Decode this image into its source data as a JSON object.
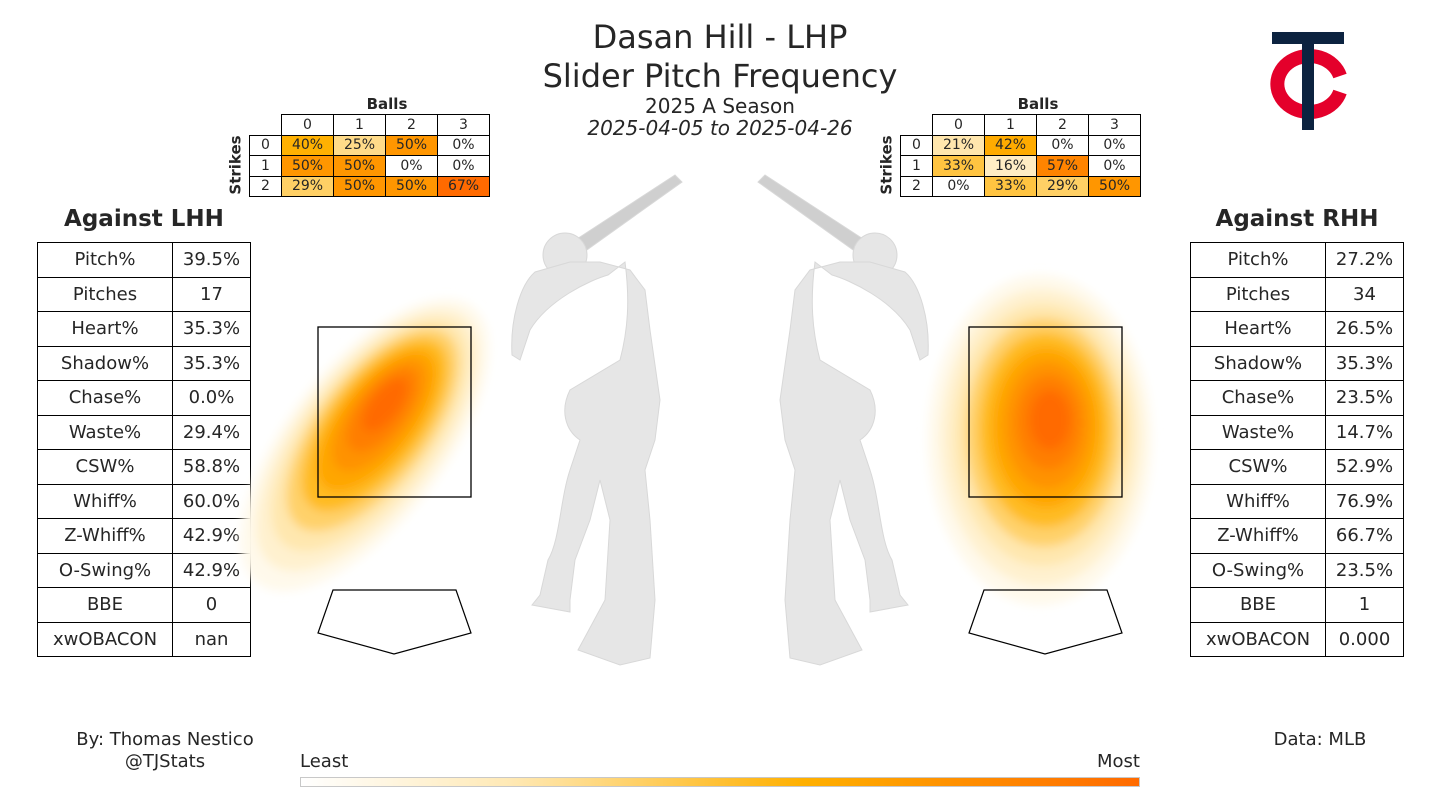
{
  "header": {
    "title_line1": "Dasan Hill - LHP",
    "title_line2": "Slider Pitch Frequency",
    "season": "2025 A Season",
    "dates": "2025-04-05 to 2025-04-26"
  },
  "colors": {
    "low": "#fffbf0",
    "mid": "#ffb000",
    "high": "#ff6a00",
    "logo_navy": "#0c2340",
    "logo_red": "#e4002b"
  },
  "lhh": {
    "heading": "Against LHH",
    "stats": [
      {
        "label": "Pitch%",
        "value": "39.5%"
      },
      {
        "label": "Pitches",
        "value": "17"
      },
      {
        "label": "Heart%",
        "value": "35.3%"
      },
      {
        "label": "Shadow%",
        "value": "35.3%"
      },
      {
        "label": "Chase%",
        "value": "0.0%"
      },
      {
        "label": "Waste%",
        "value": "29.4%"
      },
      {
        "label": "CSW%",
        "value": "58.8%"
      },
      {
        "label": "Whiff%",
        "value": "60.0%"
      },
      {
        "label": "Z-Whiff%",
        "value": "42.9%"
      },
      {
        "label": "O-Swing%",
        "value": "42.9%"
      },
      {
        "label": "BBE",
        "value": "0"
      },
      {
        "label": "xwOBACON",
        "value": "nan"
      }
    ],
    "count_grid": {
      "balls_label": "Balls",
      "strikes_label": "Strikes",
      "ball_cols": [
        "0",
        "1",
        "2",
        "3"
      ],
      "strike_rows": [
        "0",
        "1",
        "2"
      ],
      "cells": [
        [
          {
            "v": 40,
            "t": "40%"
          },
          {
            "v": 25,
            "t": "25%"
          },
          {
            "v": 50,
            "t": "50%"
          },
          {
            "v": 0,
            "t": "0%"
          }
        ],
        [
          {
            "v": 50,
            "t": "50%"
          },
          {
            "v": 50,
            "t": "50%"
          },
          {
            "v": 0,
            "t": "0%"
          },
          {
            "v": 0,
            "t": "0%"
          }
        ],
        [
          {
            "v": 29,
            "t": "29%"
          },
          {
            "v": 50,
            "t": "50%"
          },
          {
            "v": 50,
            "t": "50%"
          },
          {
            "v": 67,
            "t": "67%"
          }
        ]
      ]
    }
  },
  "rhh": {
    "heading": "Against RHH",
    "stats": [
      {
        "label": "Pitch%",
        "value": "27.2%"
      },
      {
        "label": "Pitches",
        "value": "34"
      },
      {
        "label": "Heart%",
        "value": "26.5%"
      },
      {
        "label": "Shadow%",
        "value": "35.3%"
      },
      {
        "label": "Chase%",
        "value": "23.5%"
      },
      {
        "label": "Waste%",
        "value": "14.7%"
      },
      {
        "label": "CSW%",
        "value": "52.9%"
      },
      {
        "label": "Whiff%",
        "value": "76.9%"
      },
      {
        "label": "Z-Whiff%",
        "value": "66.7%"
      },
      {
        "label": "O-Swing%",
        "value": "23.5%"
      },
      {
        "label": "BBE",
        "value": "1"
      },
      {
        "label": "xwOBACON",
        "value": "0.000"
      }
    ],
    "count_grid": {
      "balls_label": "Balls",
      "strikes_label": "Strikes",
      "ball_cols": [
        "0",
        "1",
        "2",
        "3"
      ],
      "strike_rows": [
        "0",
        "1",
        "2"
      ],
      "cells": [
        [
          {
            "v": 21,
            "t": "21%"
          },
          {
            "v": 42,
            "t": "42%"
          },
          {
            "v": 0,
            "t": "0%"
          },
          {
            "v": 0,
            "t": "0%"
          }
        ],
        [
          {
            "v": 33,
            "t": "33%"
          },
          {
            "v": 16,
            "t": "16%"
          },
          {
            "v": 57,
            "t": "57%"
          },
          {
            "v": 0,
            "t": "0%"
          }
        ],
        [
          {
            "v": 0,
            "t": "0%"
          },
          {
            "v": 33,
            "t": "33%"
          },
          {
            "v": 29,
            "t": "29%"
          },
          {
            "v": 50,
            "t": "50%"
          }
        ]
      ]
    }
  },
  "footer": {
    "credit_line1": "By: Thomas Nestico",
    "credit_line2": "@TJStats",
    "source": "Data: MLB",
    "legend_low": "Least",
    "legend_high": "Most"
  },
  "chart_data": [
    {
      "type": "heatmap",
      "series": [
        {
          "name": "Against LHH",
          "density_peak_relative_to_zone": "upper-middle, toward inside",
          "spread": "extends low and outside"
        },
        {
          "name": "Against RHH",
          "density_peak_relative_to_zone": "middle-center",
          "spread": "extends low and away"
        }
      ],
      "colorscale": [
        "#ffffff",
        "#ffe8b0",
        "#ffb000",
        "#ff6a00"
      ],
      "legend_placement": "bottom-center"
    }
  ]
}
